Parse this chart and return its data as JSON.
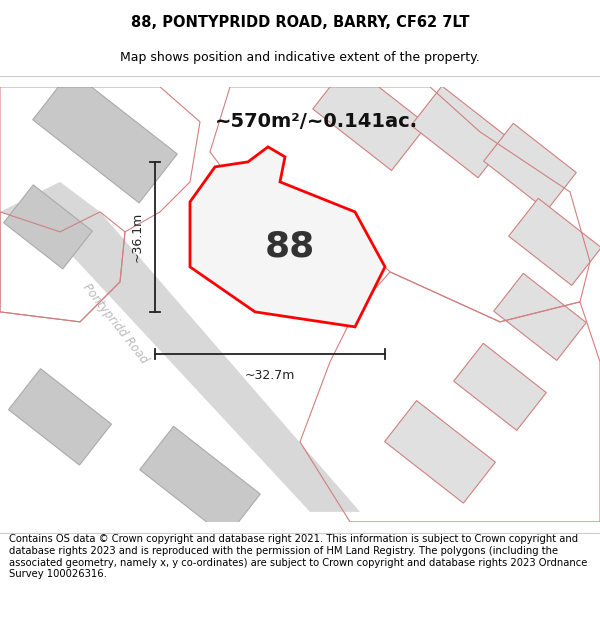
{
  "title": "88, PONTYPRIDD ROAD, BARRY, CF62 7LT",
  "subtitle": "Map shows position and indicative extent of the property.",
  "area_label": "~570m²/~0.141ac.",
  "number_label": "88",
  "dim_width": "~32.7m",
  "dim_height": "~36.1m",
  "road_label": "Pontypridd Road",
  "footer_text": "Contains OS data © Crown copyright and database right 2021. This information is subject to Crown copyright and database rights 2023 and is reproduced with the permission of HM Land Registry. The polygons (including the associated geometry, namely x, y co-ordinates) are subject to Crown copyright and database rights 2023 Ordnance Survey 100026316.",
  "title_fontsize": 10.5,
  "subtitle_fontsize": 9,
  "footer_fontsize": 7.2,
  "map_bg": "#ececec",
  "parcel_fill": "#f5f5f5",
  "parcel_outline": "#ff0000",
  "building_fill_dark": "#c8c8c8",
  "building_fill_light": "#e0e0e0",
  "building_edge_dark": "#aaaaaa",
  "building_edge_pink": "#d08080",
  "parcel_edge_pink": "#d08080",
  "road_fill": "#dcdcdc",
  "dim_color": "#222222",
  "label_color": "#111111",
  "road_label_color": "#bbbbbb",
  "number_color": "#333333"
}
